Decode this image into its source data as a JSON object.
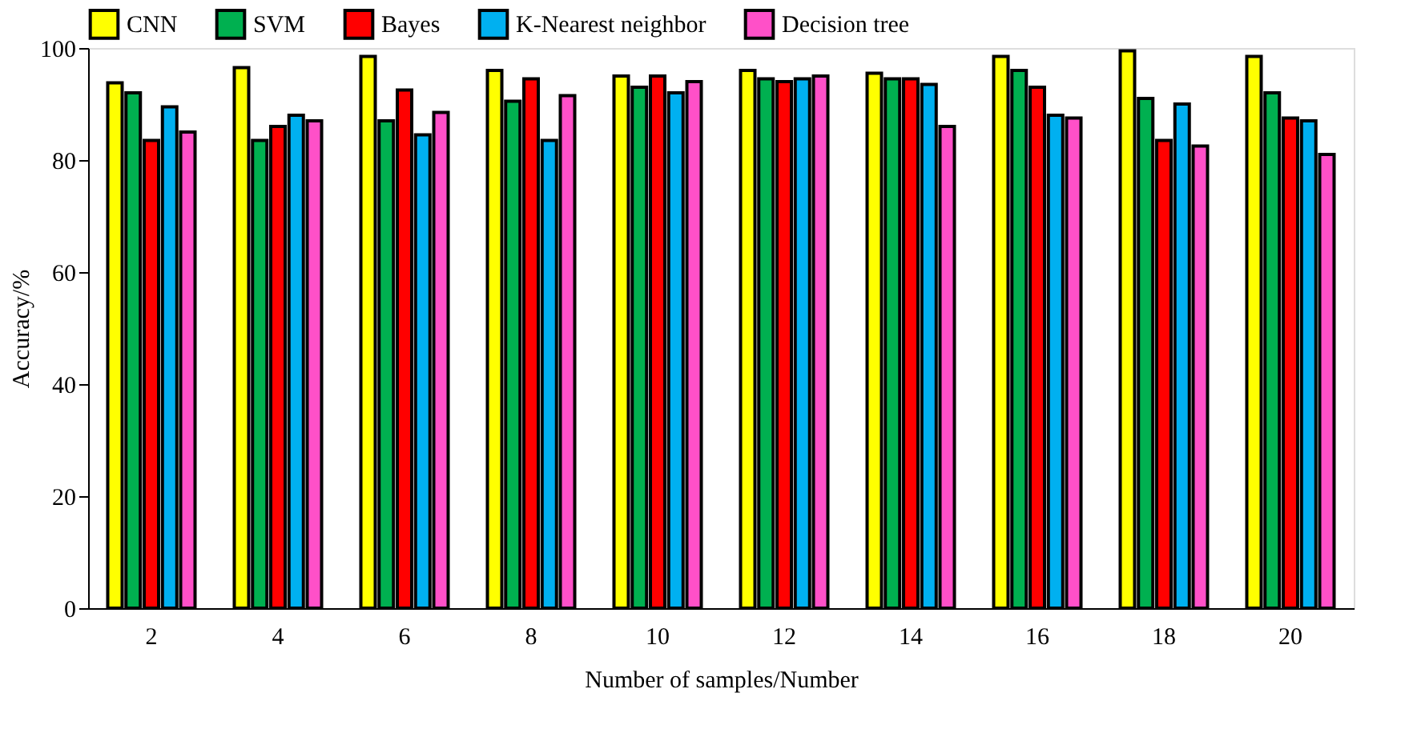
{
  "chart_data": {
    "type": "bar",
    "xlabel": "Number of samples/Number",
    "ylabel": "Accuracy/%",
    "categories": [
      "2",
      "4",
      "6",
      "8",
      "10",
      "12",
      "14",
      "16",
      "18",
      "20"
    ],
    "series": [
      {
        "name": "CNN",
        "color": "#ffff00",
        "values": [
          93.8,
          96.5,
          98.5,
          96,
          95,
          96,
          95.5,
          98.5,
          99.5,
          98.5
        ]
      },
      {
        "name": "SVM",
        "color": "#00b050",
        "values": [
          92,
          83.5,
          87,
          90.5,
          93,
          94.5,
          94.5,
          96,
          91,
          92
        ]
      },
      {
        "name": "Bayes",
        "color": "#ff0000",
        "values": [
          83.5,
          86,
          92.5,
          94.5,
          95,
          94,
          94.5,
          93,
          83.5,
          87.5
        ]
      },
      {
        "name": "K-Nearest neighbor",
        "color": "#00b0f0",
        "values": [
          89.5,
          88,
          84.5,
          83.5,
          92,
          94.5,
          93.5,
          88,
          90,
          87
        ]
      },
      {
        "name": "Decision tree",
        "color": "#ff50c8",
        "values": [
          85,
          87,
          88.5,
          91.5,
          94,
          95,
          86,
          87.5,
          82.5,
          81
        ]
      }
    ],
    "ylim": [
      0,
      100
    ],
    "yticks": [
      0,
      20,
      40,
      60,
      80,
      100
    ],
    "grid": false,
    "legend": "top"
  }
}
